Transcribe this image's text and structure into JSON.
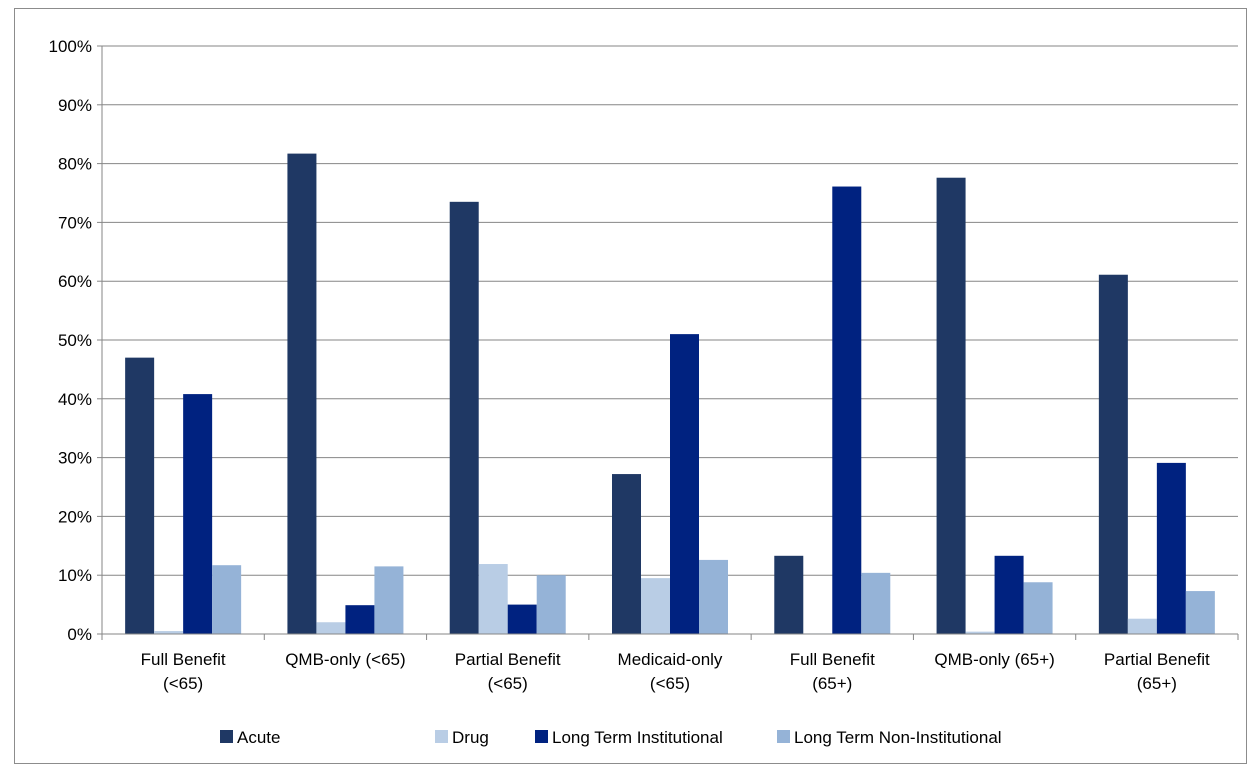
{
  "chart_data": {
    "type": "bar",
    "title": "",
    "xlabel": "",
    "ylabel": "",
    "ylim": [
      0,
      100
    ],
    "y_ticks": [
      "0%",
      "10%",
      "20%",
      "30%",
      "40%",
      "50%",
      "60%",
      "70%",
      "80%",
      "90%",
      "100%"
    ],
    "y_tick_values": [
      0,
      10,
      20,
      30,
      40,
      50,
      60,
      70,
      80,
      90,
      100
    ],
    "categories": [
      [
        "Full Benefit",
        "(<65)"
      ],
      [
        "QMB-only (<65)"
      ],
      [
        "Partial Benefit",
        "(<65)"
      ],
      [
        "Medicaid-only",
        "(<65)"
      ],
      [
        "Full Benefit",
        "(65+)"
      ],
      [
        "QMB-only (65+)"
      ],
      [
        "Partial Benefit",
        "(65+)"
      ]
    ],
    "series": [
      {
        "name": "Acute",
        "color": "#1f3864",
        "values": [
          47.0,
          81.7,
          73.5,
          27.2,
          13.3,
          77.6,
          61.1
        ]
      },
      {
        "name": "Drug",
        "color": "#b9cde5",
        "values": [
          0.5,
          2.0,
          11.9,
          9.5,
          0.1,
          0.4,
          2.6
        ]
      },
      {
        "name": "Long Term Institutional",
        "color": "#002280",
        "values": [
          40.8,
          4.9,
          5.0,
          51.0,
          76.1,
          13.3,
          29.1
        ]
      },
      {
        "name": "Long Term Non-Institutional",
        "color": "#95b3d7",
        "values": [
          11.7,
          11.5,
          10.0,
          12.6,
          10.4,
          8.8,
          7.3
        ]
      }
    ],
    "grid": true,
    "legend": "bottom"
  }
}
